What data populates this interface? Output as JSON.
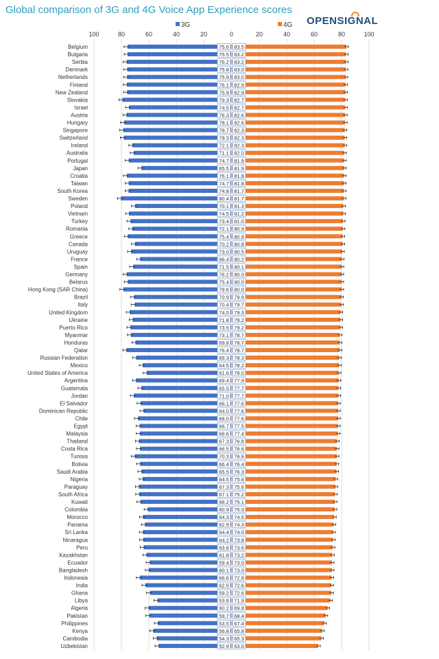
{
  "title": "Global comparison of 3G and 4G Voice App Experience scores",
  "logo": "OPENSIGNAL",
  "chart_data": {
    "type": "bar",
    "title": "Global comparison of 3G and 4G Voice App Experience scores",
    "legend": {
      "placement": "top",
      "series": [
        "3G",
        "4G"
      ]
    },
    "axis_ticks": [
      "100",
      "80",
      "60",
      "40",
      "20",
      "0",
      "20",
      "40",
      "60",
      "80",
      "100"
    ],
    "xlim": [
      0,
      100
    ],
    "grid": true,
    "colors": {
      "3G": "#4472c4",
      "4G": "#ed7d31",
      "grid": "#dcdcdc",
      "label_box": "#7f9fce"
    },
    "categories": [
      "Belgium",
      "Bulgaria",
      "Serbia",
      "Denmark",
      "Netherlands",
      "Finland",
      "New Zealand",
      "Slovakia",
      "Israel",
      "Austria",
      "Hungary",
      "Singapore",
      "Switzerland",
      "Ireland",
      "Australia",
      "Portugal",
      "Japan",
      "Croatia",
      "Taiwan",
      "South Korea",
      "Sweden",
      "Poland",
      "Vietnam",
      "Turkey",
      "Romania",
      "Greece",
      "Canada",
      "Uruguay",
      "France",
      "Spain",
      "Germany",
      "Belarus",
      "Hong Kong (SAR China)",
      "Brazil",
      "Italy",
      "United Kingdom",
      "Ukraine",
      "Puerto Rico",
      "Myanmar",
      "Honduras",
      "Qatar",
      "Russian Federation",
      "Mexico",
      "United States of America",
      "Argentina",
      "Guatemala",
      "Jordan",
      "El Salvador",
      "Dominican Republic",
      "Chile",
      "Egypt",
      "Malaysia",
      "Thailand",
      "Costa Rica",
      "Tunisia",
      "Bolivia",
      "Saudi Arabia",
      "Nigeria",
      "Paraguay",
      "South Africa",
      "Kuwait",
      "Colombia",
      "Morocco",
      "Panama",
      "Sri Lanka",
      "Nicaragua",
      "Peru",
      "Kazakhstan",
      "Ecuador",
      "Bangladesh",
      "Indonesia",
      "India",
      "Ghana",
      "Libya",
      "Algeria",
      "Pakistan",
      "Philippines",
      "Kenya",
      "Cambodia",
      "Uzbekistan"
    ],
    "series": [
      {
        "name": "3G",
        "values": [
          75.6,
          75.5,
          76.2,
          75.8,
          75.9,
          76.1,
          75.9,
          79.3,
          74.5,
          76.3,
          78.1,
          78.7,
          78.3,
          72.1,
          71.1,
          74.7,
          65.5,
          76.1,
          74.7,
          74.8,
          80.4,
          70.1,
          74.5,
          73.4,
          72.1,
          75.4,
          70.2,
          73.0,
          66.4,
          71.5,
          76.2,
          75.4,
          78.6,
          70.9,
          70.4,
          74.0,
          71.8,
          73.5,
          73.1,
          69.8,
          76.4,
          69.3,
          64.5,
          61.6,
          69.4,
          65.5,
          71.0,
          66.1,
          64.0,
          68.0,
          66.7,
          66.6,
          67.3,
          66.5,
          70.3,
          66.4,
          65.5,
          64.5,
          67.3,
          67.1,
          66.2,
          60.9,
          64.3,
          62.9,
          64.4,
          64.2,
          63.8,
          61.8,
          59.4,
          60.1,
          66.6,
          62.5,
          59.2,
          53.8,
          60.2,
          59.7,
          53.5,
          56.8,
          54.3,
          52.9
        ]
      },
      {
        "name": "4G",
        "values": [
          83.5,
          83.2,
          83.2,
          83.0,
          83.0,
          82.9,
          82.9,
          82.7,
          82.7,
          82.6,
          82.6,
          82.3,
          82.3,
          82.3,
          82.0,
          81.9,
          81.9,
          81.8,
          81.8,
          81.7,
          81.7,
          81.3,
          81.2,
          81.0,
          80.9,
          80.8,
          80.8,
          80.5,
          80.2,
          80.1,
          80.0,
          80.0,
          80.0,
          79.9,
          79.7,
          79.3,
          79.2,
          79.2,
          78.7,
          78.7,
          78.7,
          78.3,
          78.2,
          78.0,
          77.9,
          77.7,
          77.7,
          77.6,
          77.6,
          77.6,
          77.5,
          77.4,
          76.8,
          76.6,
          76.6,
          76.4,
          76.3,
          75.6,
          75.6,
          75.2,
          75.1,
          75.0,
          74.6,
          74.3,
          74.0,
          73.8,
          73.6,
          73.2,
          73.0,
          73.0,
          72.8,
          72.6,
          72.6,
          71.9,
          69.8,
          68.4,
          67.4,
          65.8,
          65.3,
          63.0
        ]
      }
    ]
  }
}
